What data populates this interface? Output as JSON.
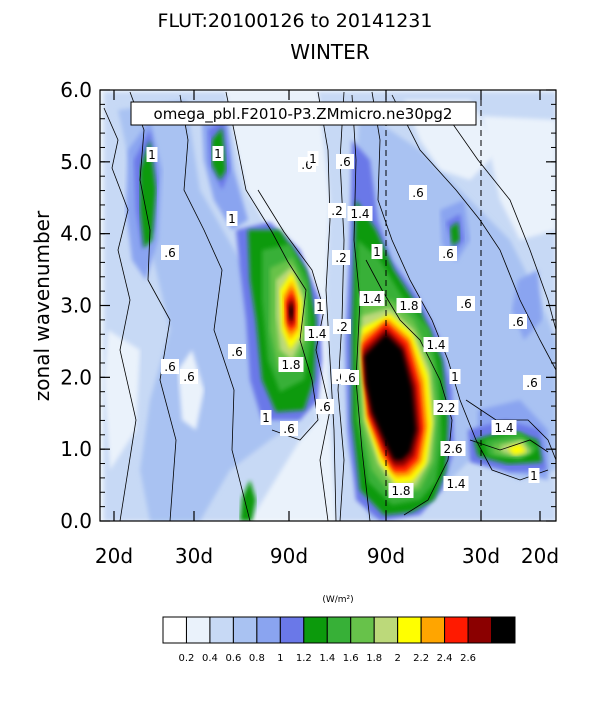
{
  "chart_data": {
    "type": "heatmap",
    "title": "FLUT:20100126 to 20141231",
    "subtitle": "WINTER",
    "annotation": "omega_pbl.F2010-P3.ZMmicro.ne30pg2",
    "ylabel": "zonal wavenumber",
    "units_label": "(W/m²)",
    "ylim": [
      0,
      6
    ],
    "yticks": [
      0,
      1,
      2,
      3,
      4,
      5,
      6
    ],
    "ytick_labels": [
      "0.0",
      "1.0",
      "2.0",
      "3.0",
      "4.0",
      "5.0",
      "6.0"
    ],
    "xtick_labels": [
      "20d",
      "30d",
      "90d",
      "90d",
      "30d",
      "20d"
    ],
    "colorbar": {
      "levels": [
        0.2,
        0.4,
        0.6,
        0.8,
        1,
        1.2,
        1.4,
        1.6,
        1.8,
        2,
        2.2,
        2.4,
        2.6
      ],
      "colors": [
        "#ffffff",
        "#eaf2fb",
        "#c7d9f5",
        "#a9c2f2",
        "#8aa4f0",
        "#6a78e8",
        "#0c9a0c",
        "#37b037",
        "#67c24a",
        "#bcd97a",
        "#ffff00",
        "#ffa500",
        "#ff1a00",
        "#8b0000",
        "#000000"
      ]
    },
    "contour_labels": [
      ".6",
      "1",
      "1",
      ".6",
      "1",
      ".6",
      ".6",
      ".6",
      "1",
      ".6",
      "1.8",
      "1.4",
      "1",
      ".6",
      "1",
      ".6",
      ".2",
      ".2",
      ".2",
      ".6",
      "1.4",
      "1",
      "1.8",
      "1.4",
      "1.4",
      ".6",
      "1",
      "2.2",
      "2.6",
      "1.8",
      "1.4",
      ".6",
      "1.4",
      "1",
      ".6",
      ".6",
      ".6",
      ".6"
    ]
  }
}
